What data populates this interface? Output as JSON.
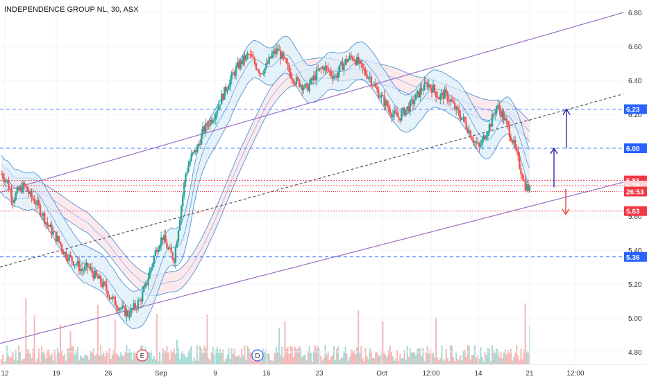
{
  "chart_data": {
    "type": "candlestick",
    "title": "INDEPENDENCE GROUP NL, 30, ASX",
    "ylim": [
      4.72,
      6.88
    ],
    "y_ticks": [
      6.8,
      6.6,
      6.4,
      6.2,
      5.8,
      5.6,
      5.4,
      5.2,
      5.0,
      4.8
    ],
    "x_ticks": [
      "12",
      "19",
      "26",
      "Sep",
      "9",
      "16",
      "23",
      "Oct",
      "12:00",
      "14",
      "21",
      "12:00"
    ],
    "price_tags": [
      {
        "label": "6.23",
        "value": 6.23,
        "style": "blue"
      },
      {
        "label": "6.00",
        "value": 6.0,
        "style": "blue"
      },
      {
        "label": "5.81",
        "value": 5.81,
        "style": "red"
      },
      {
        "label": "5.78",
        "value": 5.78,
        "style": "red-light"
      },
      {
        "label": "26:53",
        "value": 5.745,
        "style": "red"
      },
      {
        "label": "5.63",
        "value": 5.63,
        "style": "red"
      },
      {
        "label": "5.36",
        "value": 5.36,
        "style": "blue"
      }
    ],
    "event_markers": [
      "E",
      "D"
    ],
    "price_series": [
      5.85,
      5.8,
      5.7,
      5.75,
      5.78,
      5.72,
      5.68,
      5.62,
      5.55,
      5.5,
      5.45,
      5.38,
      5.35,
      5.32,
      5.28,
      5.3,
      5.26,
      5.22,
      5.18,
      5.12,
      5.08,
      5.05,
      5.02,
      5.06,
      5.1,
      5.18,
      5.3,
      5.42,
      5.48,
      5.4,
      5.35,
      5.6,
      5.85,
      5.95,
      6.0,
      6.1,
      6.15,
      6.2,
      6.28,
      6.35,
      6.42,
      6.48,
      6.52,
      6.55,
      6.5,
      6.45,
      6.48,
      6.55,
      6.58,
      6.52,
      6.45,
      6.4,
      6.38,
      6.35,
      6.4,
      6.45,
      6.48,
      6.45,
      6.42,
      6.48,
      6.52,
      6.54,
      6.5,
      6.45,
      6.42,
      6.35,
      6.3,
      6.25,
      6.2,
      6.18,
      6.22,
      6.25,
      6.3,
      6.35,
      6.38,
      6.35,
      6.3,
      6.32,
      6.28,
      6.22,
      6.18,
      6.12,
      6.05,
      6.0,
      6.08,
      6.15,
      6.25,
      6.2,
      6.12,
      6.02,
      5.9,
      5.78,
      5.745
    ],
    "colors": {
      "up": "#26a69a",
      "down": "#ef5350",
      "channel": "#9c6fc3",
      "bands": "#5b9bd5",
      "blue_tag": "#2962ff",
      "red_tag": "#f23645",
      "arrow_blue": "#1a1aa6",
      "arrow_red": "#e53935"
    }
  }
}
